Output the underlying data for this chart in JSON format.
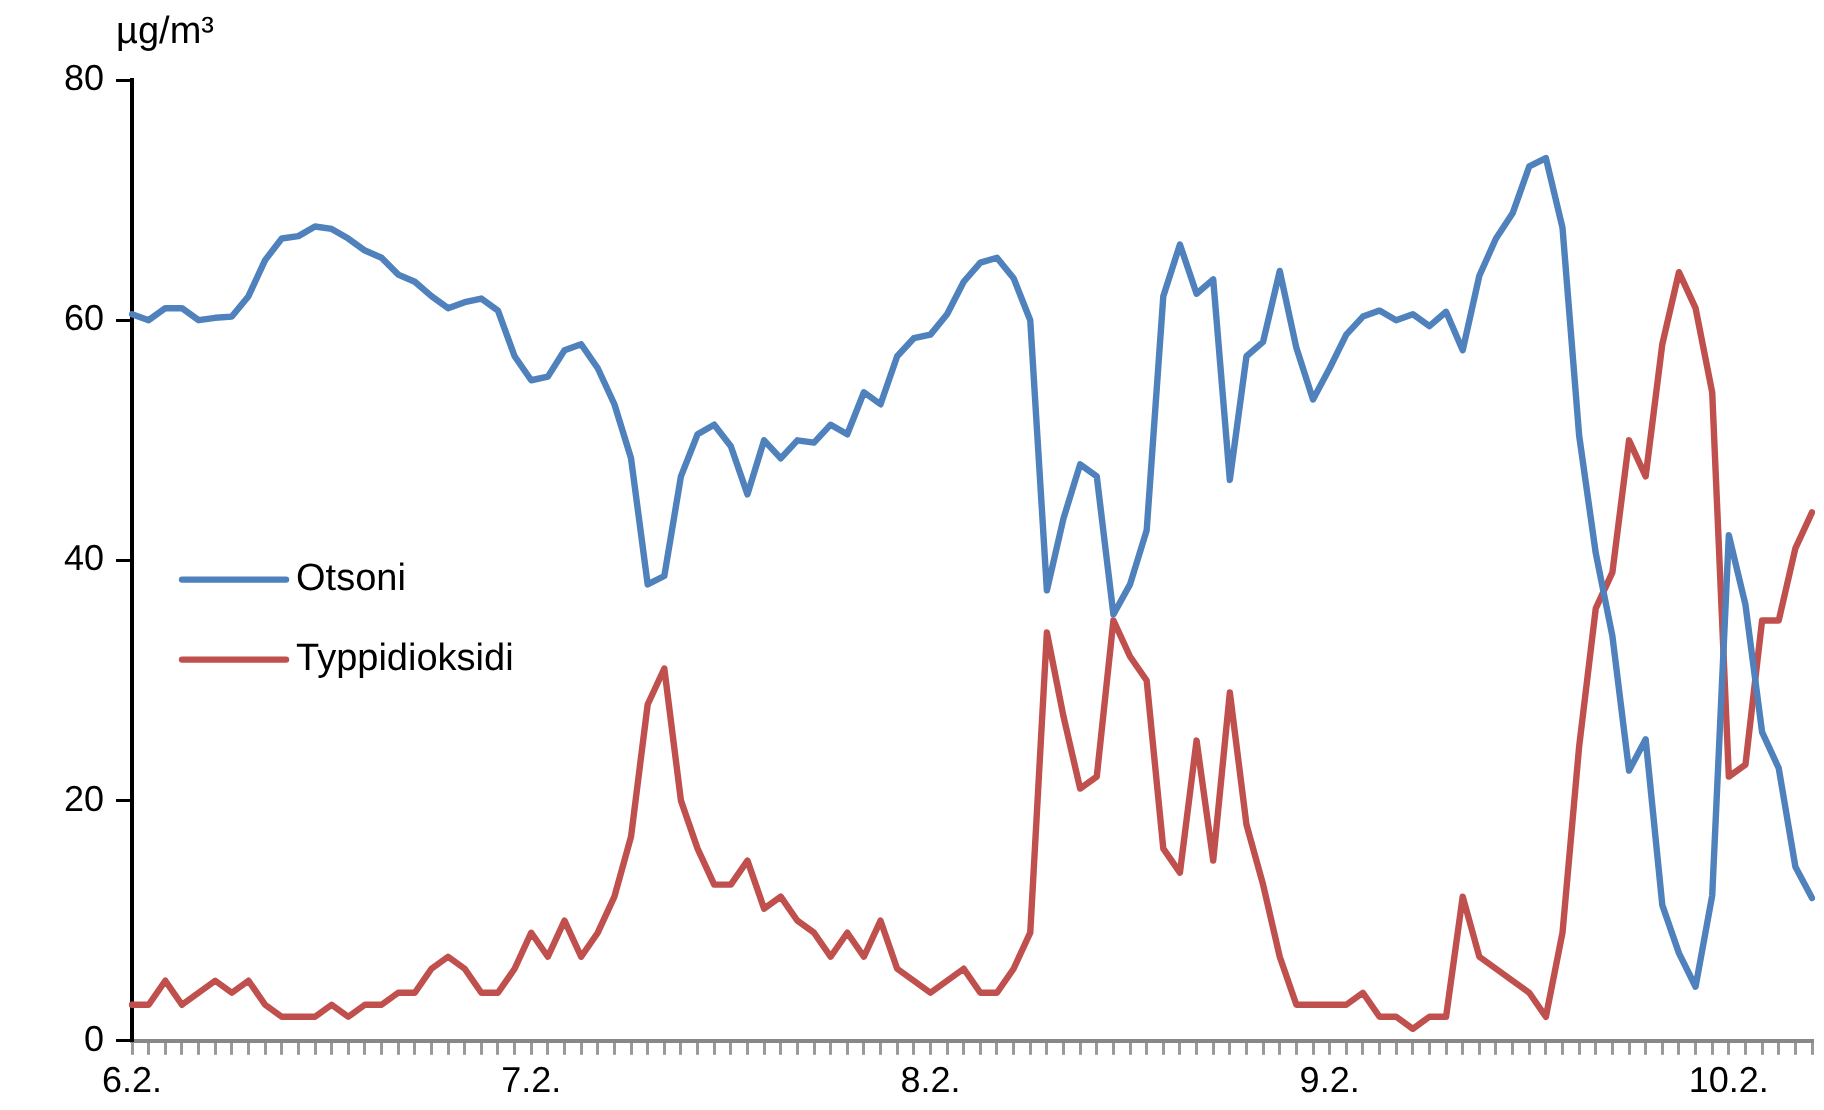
{
  "chart_data": {
    "type": "line",
    "ylabel": "µg/m³",
    "categories": [
      "6.2.",
      null,
      null,
      null,
      null,
      null,
      null,
      null,
      null,
      null,
      null,
      null,
      null,
      null,
      null,
      null,
      null,
      null,
      null,
      null,
      null,
      null,
      null,
      null,
      "7.2.",
      null,
      null,
      null,
      null,
      null,
      null,
      null,
      null,
      null,
      null,
      null,
      null,
      null,
      null,
      null,
      null,
      null,
      null,
      null,
      null,
      null,
      null,
      null,
      "8.2.",
      null,
      null,
      null,
      null,
      null,
      null,
      null,
      null,
      null,
      null,
      null,
      null,
      null,
      null,
      null,
      null,
      null,
      null,
      null,
      null,
      null,
      null,
      null,
      "9.2.",
      null,
      null,
      null,
      null,
      null,
      null,
      null,
      null,
      null,
      null,
      null,
      null,
      null,
      null,
      null,
      null,
      null,
      null,
      null,
      null,
      null,
      null,
      null,
      "10.2.",
      null,
      null,
      null,
      null,
      null
    ],
    "series": [
      {
        "name": "Otsoni",
        "color": "#4f81bd",
        "values": [
          60.5,
          60,
          61,
          61,
          60,
          60.2,
          60.3,
          62,
          65,
          66.8,
          67,
          67.8,
          67.6,
          66.8,
          65.8,
          65.2,
          63.8,
          63.2,
          62,
          61,
          61.5,
          61.8,
          60.8,
          57,
          55,
          55.3,
          57.5,
          58,
          56,
          53,
          48.5,
          38,
          38.7,
          47,
          50.5,
          51.3,
          49.5,
          45.5,
          50,
          48.5,
          50,
          49.8,
          51.3,
          50.5,
          54,
          53,
          57,
          58.5,
          58.8,
          60.5,
          63.2,
          64.8,
          65.2,
          63.5,
          60,
          37.5,
          43.5,
          48,
          47,
          35.5,
          38,
          42.5,
          62,
          66.3,
          62.2,
          63.4,
          46.7,
          57,
          58.2,
          64.1,
          57.7,
          53.4,
          56,
          58.8,
          60.3,
          60.8,
          60,
          60.5,
          59.5,
          60.7,
          57.5,
          63.7,
          66.8,
          68.9,
          72.8,
          73.5,
          67.7,
          50.4,
          40.6,
          33.7,
          22.5,
          25.1,
          11.3,
          7.3,
          4.5,
          12.1,
          42.1,
          36.3,
          25.7,
          22.7,
          14.5,
          11.9
        ]
      },
      {
        "name": "Typpidioksidi",
        "color": "#c0504d",
        "values": [
          3,
          3,
          5,
          3,
          4,
          5,
          4,
          5,
          3,
          2,
          2,
          2,
          3,
          2,
          3,
          3,
          4,
          4,
          6,
          7,
          6,
          4,
          4,
          6,
          9,
          7,
          10,
          7,
          9,
          12,
          17,
          28,
          31,
          20,
          16,
          13,
          13,
          15,
          11,
          12,
          10,
          9,
          7,
          9,
          7,
          10,
          6,
          5,
          4,
          5,
          6,
          4,
          4,
          6,
          9,
          34,
          27,
          21,
          22,
          35,
          32,
          30,
          16,
          14,
          25,
          15,
          29,
          18,
          13,
          7,
          3,
          3,
          3,
          3,
          4,
          2,
          2,
          1,
          2,
          2,
          12,
          7,
          6,
          5,
          4,
          2,
          9,
          24.5,
          36,
          39,
          50,
          47,
          58,
          64,
          61,
          54,
          22,
          23,
          35,
          35,
          41,
          44
        ]
      }
    ],
    "ylim": [
      0,
      80
    ],
    "yticks": [
      0,
      20,
      40,
      60,
      80
    ],
    "grid": false,
    "legend": "left",
    "marker": "none"
  }
}
